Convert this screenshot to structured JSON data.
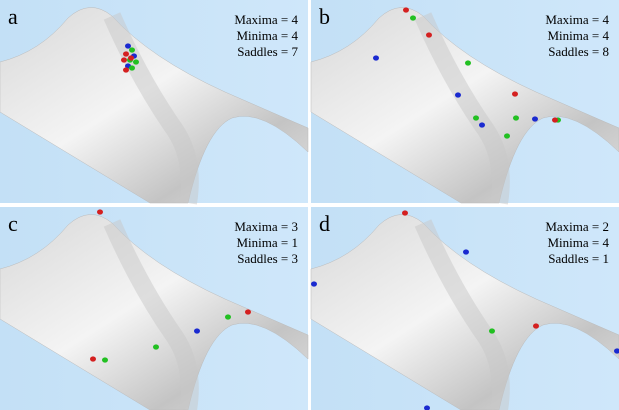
{
  "panels": [
    {
      "label": "a",
      "maxima": "Maxima = 4",
      "minima": "Minima = 4",
      "saddles": "Saddles = 7"
    },
    {
      "label": "b",
      "maxima": "Maxima = 4",
      "minima": "Minima = 4",
      "saddles": "Saddles = 8"
    },
    {
      "label": "c",
      "maxima": "Maxima = 3",
      "minima": "Minima = 1",
      "saddles": "Saddles = 3"
    },
    {
      "label": "d",
      "maxima": "Maxima = 2",
      "minima": "Minima = 4",
      "saddles": "Saddles = 1"
    }
  ]
}
